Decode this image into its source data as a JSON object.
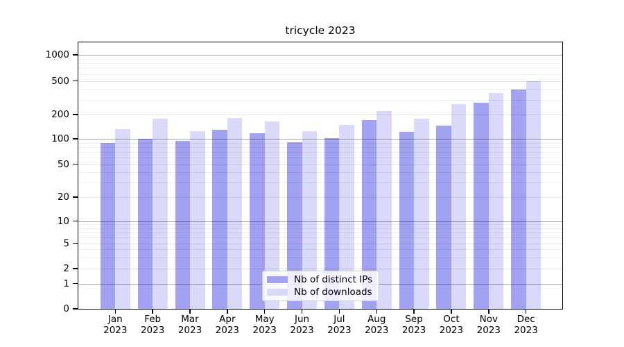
{
  "chart_data": {
    "type": "bar",
    "title": "tricycle 2023",
    "categories": [
      "Jan 2023",
      "Feb 2023",
      "Mar 2023",
      "Apr 2023",
      "May 2023",
      "Jun 2023",
      "Jul 2023",
      "Aug 2023",
      "Sep 2023",
      "Oct 2023",
      "Nov 2023",
      "Dec 2023"
    ],
    "series": [
      {
        "name": "Nb of distinct IPs",
        "color": "#a2a2f2",
        "values": [
          89,
          100,
          95,
          129,
          118,
          91,
          103,
          172,
          121,
          145,
          274,
          395
        ]
      },
      {
        "name": "Nb of downloads",
        "color": "#d9d9f9",
        "values": [
          133,
          178,
          124,
          182,
          163,
          125,
          149,
          220,
          177,
          268,
          357,
          497
        ]
      }
    ],
    "yscale": "symlog",
    "yticks": [
      0,
      1,
      2,
      5,
      10,
      20,
      50,
      100,
      200,
      500,
      1000
    ],
    "ylim": [
      0,
      1450
    ],
    "xlabel": "",
    "ylabel": "",
    "grid": true,
    "legend_position": "lower center"
  }
}
